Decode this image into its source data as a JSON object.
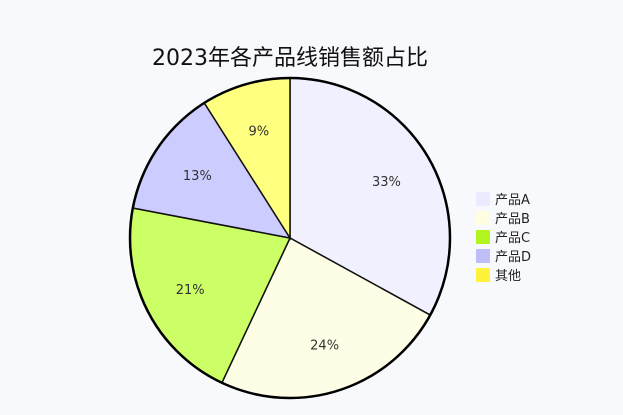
{
  "chart_data": {
    "type": "pie",
    "title": "2023年各产品线销售额占比",
    "categories": [
      "产品A",
      "产品B",
      "产品C",
      "产品D",
      "其他"
    ],
    "values": [
      33,
      24,
      21,
      13,
      9
    ],
    "labels": [
      "33%",
      "24%",
      "21%",
      "13%",
      "9%"
    ],
    "colors": [
      "#f0f0ff",
      "#fefee6",
      "#ccff66",
      "#ccccff",
      "#ffff80"
    ],
    "legend_colors": [
      "#ebebff",
      "#fffee0",
      "#b3f51f",
      "#bfbff7",
      "#fff23a"
    ],
    "legend_position": "right"
  }
}
